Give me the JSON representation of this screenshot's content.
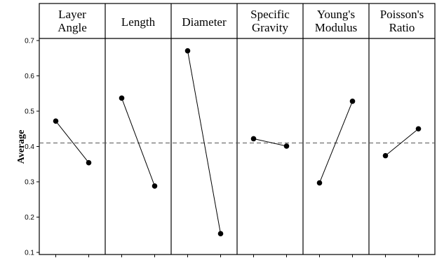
{
  "chart_data": {
    "type": "line",
    "ylabel": "Average",
    "ylim": [
      0.1,
      0.7
    ],
    "yticks": [
      "0.1",
      "0.2",
      "0.3",
      "0.4",
      "0.5",
      "0.6",
      "0.7"
    ],
    "reference_line": 0.41,
    "grid": false,
    "panels": [
      {
        "title_lines": [
          "Layer",
          "Angle"
        ],
        "values": [
          0.472,
          0.354
        ]
      },
      {
        "title_lines": [
          "Length"
        ],
        "values": [
          0.537,
          0.288
        ]
      },
      {
        "title_lines": [
          "Diameter"
        ],
        "values": [
          0.671,
          0.153
        ]
      },
      {
        "title_lines": [
          "Specific",
          "Gravity"
        ],
        "values": [
          0.422,
          0.401
        ]
      },
      {
        "title_lines": [
          "Young's",
          "Modulus"
        ],
        "values": [
          0.297,
          0.528
        ]
      },
      {
        "title_lines": [
          "Poisson's",
          "Ratio"
        ],
        "values": [
          0.374,
          0.45
        ]
      }
    ]
  }
}
